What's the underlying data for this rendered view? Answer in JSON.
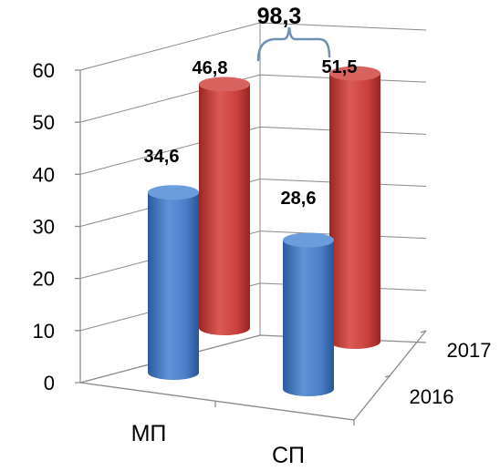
{
  "chart_data": {
    "type": "bar",
    "style": "3d-cylinder",
    "categories": [
      "МП",
      "СП"
    ],
    "series": [
      {
        "name": "2016",
        "values": [
          34.6,
          28.6
        ],
        "labels": [
          "34,6",
          "28,6"
        ],
        "color": "#4a7ec7"
      },
      {
        "name": "2017",
        "values": [
          46.8,
          51.5
        ],
        "labels": [
          "46,8",
          "51,5"
        ],
        "color": "#c9403d"
      }
    ],
    "ylim": [
      0,
      60
    ],
    "yticks": [
      "0",
      "10",
      "20",
      "30",
      "40",
      "50",
      "60"
    ],
    "depth_labels": [
      "2016",
      "2017"
    ],
    "annotation": {
      "text": "98,3",
      "spans": "2017"
    },
    "grid": true
  }
}
